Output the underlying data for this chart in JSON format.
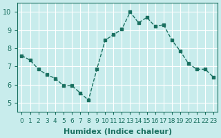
{
  "x": [
    0,
    1,
    2,
    3,
    4,
    5,
    6,
    7,
    8,
    9,
    10,
    11,
    12,
    13,
    14,
    15,
    16,
    17,
    18,
    19,
    20,
    21,
    22,
    23
  ],
  "y": [
    7.6,
    7.35,
    6.85,
    6.55,
    6.35,
    5.95,
    5.95,
    5.55,
    5.15,
    6.85,
    8.45,
    8.75,
    9.05,
    10.0,
    9.4,
    9.7,
    9.2,
    9.3,
    8.45,
    7.85,
    7.15,
    6.85,
    6.85,
    6.4
  ],
  "xlabel": "Humidex (Indice chaleur)",
  "ylim": [
    4.5,
    10.5
  ],
  "xlim": [
    -0.5,
    23.5
  ],
  "yticks": [
    5,
    6,
    7,
    8,
    9,
    10
  ],
  "xticks": [
    0,
    1,
    2,
    3,
    4,
    5,
    6,
    7,
    8,
    9,
    10,
    11,
    12,
    13,
    14,
    15,
    16,
    17,
    18,
    19,
    20,
    21,
    22,
    23
  ],
  "line_color": "#1a7060",
  "marker_color": "#1a7060",
  "bg_color": "#c8ecec",
  "grid_color": "#ffffff",
  "axis_color": "#1a7060",
  "tick_label_color": "#1a7060",
  "xlabel_color": "#1a7060",
  "xlabel_fontsize": 8,
  "tick_fontsize": 6.5,
  "ytick_fontsize": 7
}
